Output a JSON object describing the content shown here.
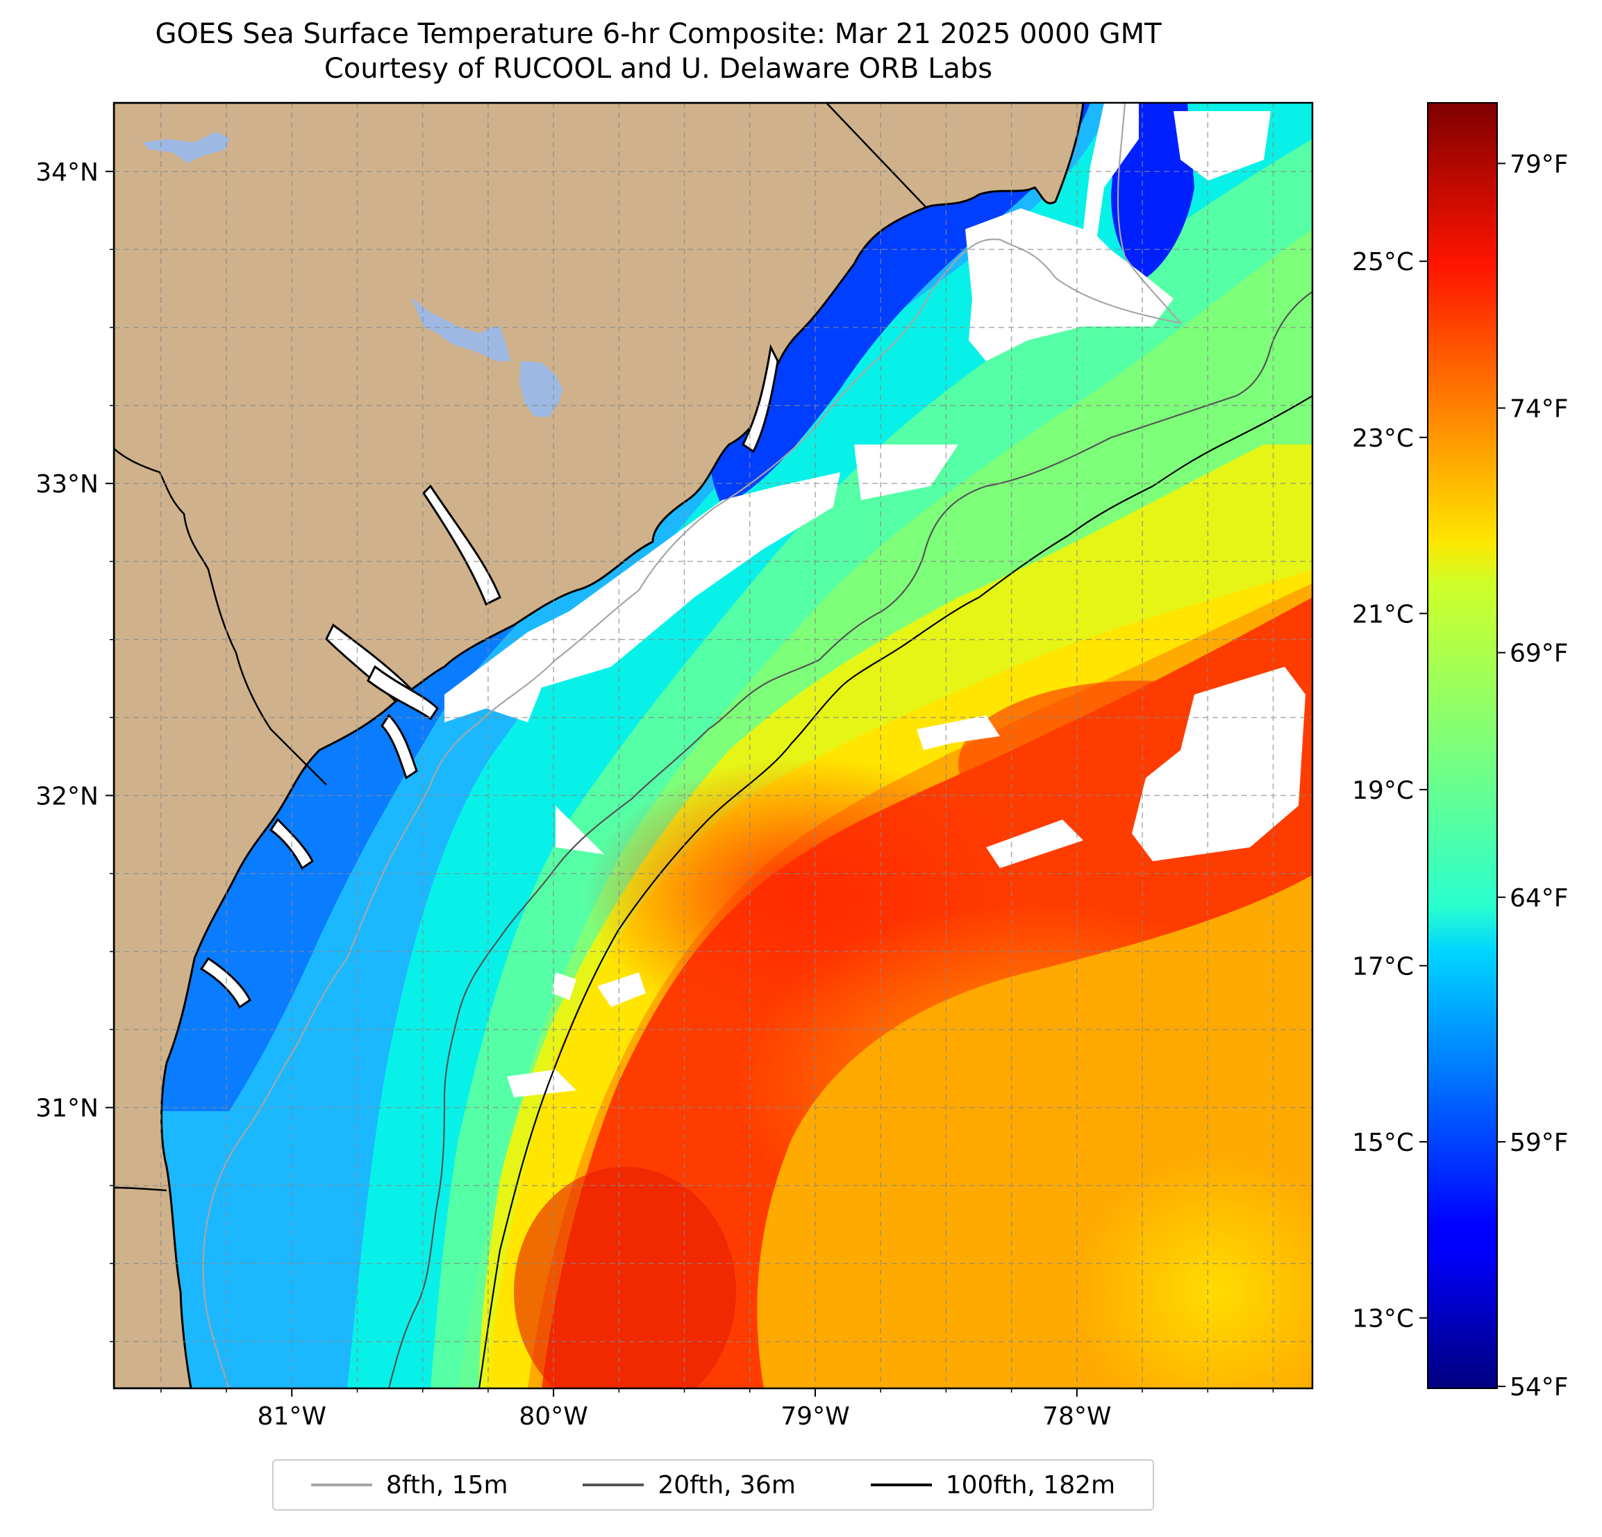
{
  "title": {
    "line1": "GOES Sea Surface Temperature 6-hr Composite: Mar 21 2025 0000 GMT",
    "line2": "Courtesy of RUCOOL and U. Delaware ORB Labs"
  },
  "map": {
    "projection": "PlateCarree",
    "lon_range": [
      -81.68,
      -77.1
    ],
    "lat_range": [
      30.1,
      34.22
    ],
    "lon_ticks": [
      "81°W",
      "80°W",
      "79°W",
      "78°W"
    ],
    "lon_tick_values": [
      -81,
      -80,
      -79,
      -78
    ],
    "lat_ticks": [
      "34°N",
      "33°N",
      "32°N",
      "31°N"
    ],
    "lat_tick_values": [
      34,
      33,
      32,
      31
    ],
    "grid": true,
    "land_color": "#cfb28b",
    "lake_color": "#9db9e3",
    "cloud_mask_color": "#ffffff"
  },
  "colorbar": {
    "cmap": "jet",
    "celsius_ticks": [
      "25°C",
      "23°C",
      "21°C",
      "19°C",
      "17°C",
      "15°C",
      "13°C"
    ],
    "celsius_values": [
      25,
      23,
      21,
      19,
      17,
      15,
      13
    ],
    "fahrenheit_ticks": [
      "79°F",
      "74°F",
      "69°F",
      "64°F",
      "59°F",
      "54°F"
    ],
    "fahrenheit_values": [
      79,
      74,
      69,
      64,
      59,
      54
    ],
    "range_c": [
      12.2,
      26.8
    ]
  },
  "legend": {
    "items": [
      {
        "label": "8fth, 15m",
        "color": "#a6a6a6"
      },
      {
        "label": "20fth, 36m",
        "color": "#555555"
      },
      {
        "label": "100fth, 182m",
        "color": "#000000"
      }
    ]
  }
}
